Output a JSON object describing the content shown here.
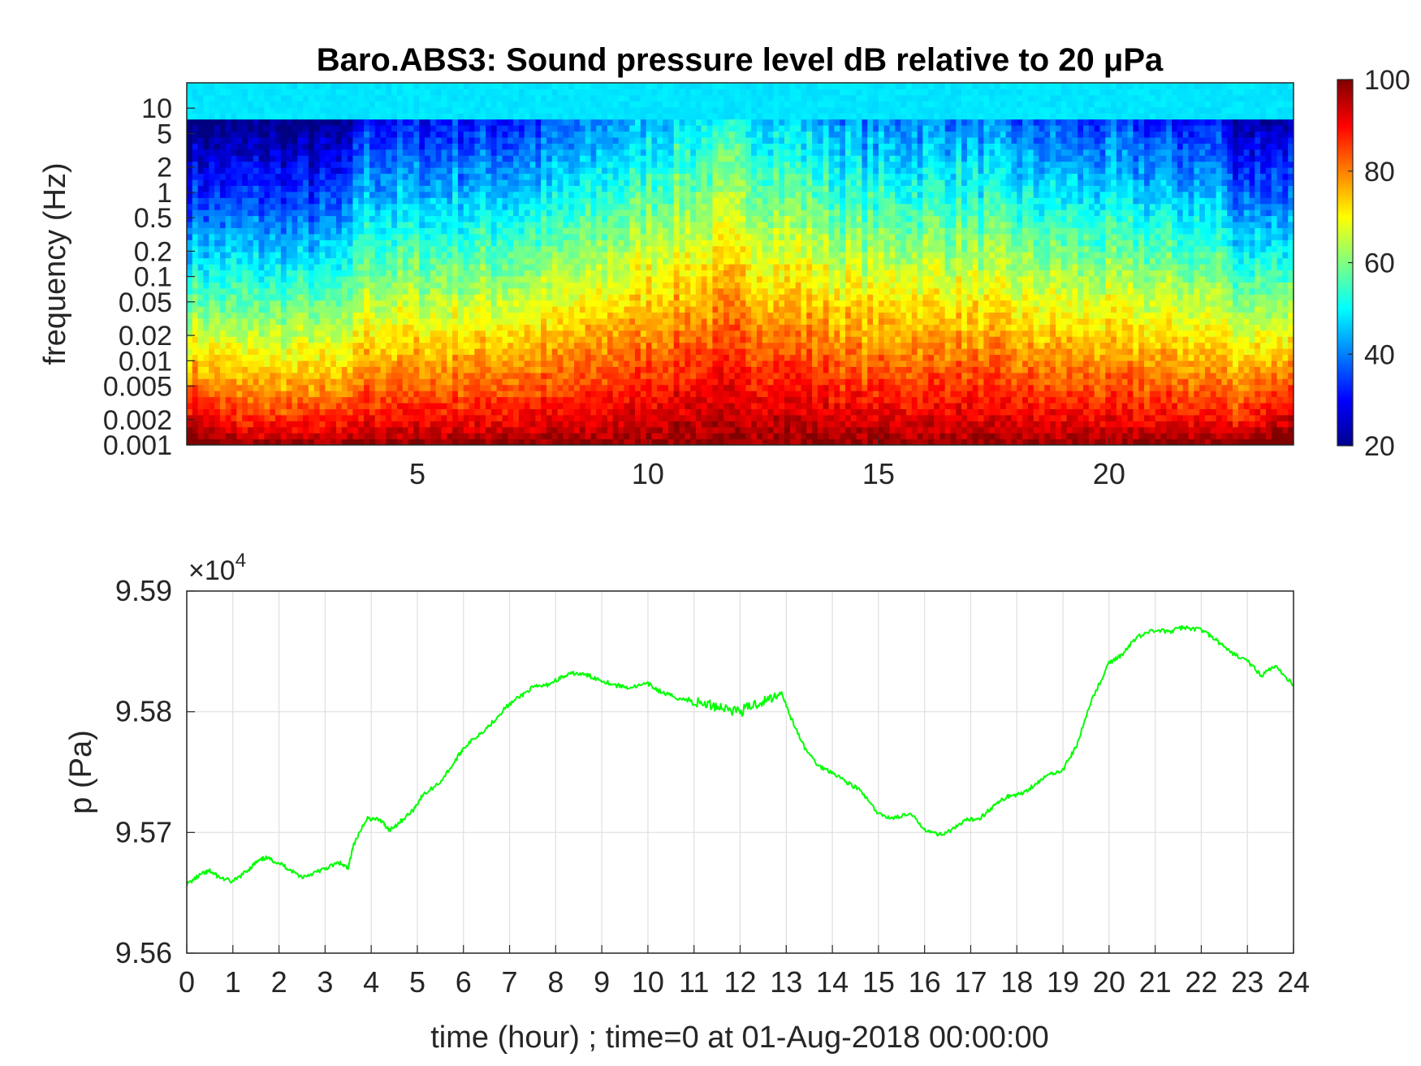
{
  "chart_data": [
    {
      "type": "heatmap",
      "title": "Baro.ABS3: Sound pressure level dB relative to 20 μPa",
      "ylabel": "frequency (Hz)",
      "xlabel": "",
      "xlim": [
        0,
        24
      ],
      "ylim": [
        0.001,
        20
      ],
      "y_scale": "log",
      "x_ticks": [
        "5",
        "10",
        "15",
        "20"
      ],
      "y_ticks": [
        "0.001",
        "0.002",
        "0.005",
        "0.01",
        "0.02",
        "0.05",
        "0.1",
        "0.2",
        "0.5",
        "1",
        "2",
        "5",
        "10"
      ],
      "colormap": "jet",
      "colorbar": {
        "range": [
          20,
          100
        ],
        "ticks": [
          "20",
          "40",
          "60",
          "80",
          "100"
        ]
      },
      "grid": false
    },
    {
      "type": "line",
      "ylabel": "p (Pa)",
      "xlabel": "time (hour) ; time=0 at 01-Aug-2018 00:00:00",
      "y_multiplier": "×10",
      "y_multiplier_exp": "4",
      "xlim": [
        0,
        24
      ],
      "ylim": [
        9.56,
        9.59
      ],
      "x_ticks": [
        "0",
        "1",
        "2",
        "3",
        "4",
        "5",
        "6",
        "7",
        "8",
        "9",
        "10",
        "11",
        "12",
        "13",
        "14",
        "15",
        "16",
        "17",
        "18",
        "19",
        "20",
        "21",
        "22",
        "23",
        "24"
      ],
      "y_ticks": [
        "9.56",
        "9.57",
        "9.58",
        "9.59"
      ],
      "grid": true,
      "series": [
        {
          "color": "#00ff00",
          "x": [
            0,
            0.3,
            0.5,
            0.7,
            1.0,
            1.3,
            1.5,
            1.7,
            2.0,
            2.2,
            2.5,
            2.8,
            3.0,
            3.3,
            3.5,
            3.6,
            3.9,
            4.2,
            4.4,
            4.6,
            4.9,
            5.1,
            5.5,
            5.8,
            6.0,
            6.3,
            6.6,
            6.9,
            7.2,
            7.5,
            7.8,
            8.1,
            8.4,
            8.7,
            9.0,
            9.3,
            9.6,
            10.0,
            10.3,
            10.6,
            11.0,
            11.3,
            11.6,
            12.0,
            12.3,
            12.6,
            12.9,
            13.1,
            13.4,
            13.7,
            14.0,
            14.3,
            14.6,
            15.0,
            15.3,
            15.7,
            16.0,
            16.3,
            16.6,
            16.9,
            17.2,
            17.5,
            17.8,
            18.1,
            18.4,
            18.7,
            19.0,
            19.3,
            19.6,
            20.0,
            20.3,
            20.6,
            21.0,
            21.3,
            21.6,
            22.0,
            22.3,
            22.6,
            23.0,
            23.3,
            23.6,
            24.0
          ],
          "y": [
            9.5657,
            9.5665,
            9.5668,
            9.5663,
            9.5659,
            9.5668,
            9.5675,
            9.5679,
            9.5675,
            9.567,
            9.5663,
            9.5667,
            9.567,
            9.5675,
            9.567,
            9.5688,
            9.5712,
            9.571,
            9.5702,
            9.5708,
            9.5718,
            9.573,
            9.5742,
            9.5758,
            9.577,
            9.578,
            9.579,
            9.5803,
            9.5812,
            9.582,
            9.5822,
            9.5828,
            9.5832,
            9.583,
            9.5826,
            9.5822,
            9.582,
            9.5823,
            9.5816,
            9.5812,
            9.5808,
            9.5806,
            9.5804,
            9.58,
            9.5806,
            9.581,
            9.5816,
            9.5795,
            9.577,
            9.5755,
            9.575,
            9.5742,
            9.5735,
            9.5715,
            9.5712,
            9.5715,
            9.5703,
            9.5698,
            9.5702,
            9.571,
            9.5712,
            9.5722,
            9.573,
            9.5732,
            9.574,
            9.5748,
            9.5752,
            9.5772,
            9.5808,
            9.584,
            9.5848,
            9.5862,
            9.5868,
            9.5866,
            9.587,
            9.5868,
            9.586,
            9.585,
            9.5842,
            9.583,
            9.5838,
            9.5822
          ]
        }
      ]
    }
  ]
}
